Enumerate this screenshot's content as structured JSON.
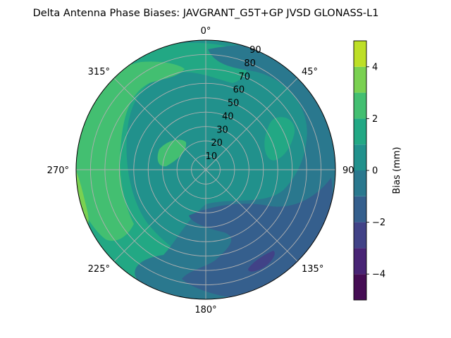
{
  "chart_data": {
    "type": "polar-contour",
    "title": "Delta Antenna Phase Biases: JAVGRANT_G5T+GP JVSD GLONASS-L1",
    "theta_direction": "clockwise",
    "theta_zero": "top",
    "theta_ticks": [
      "0°",
      "45°",
      "90°",
      "135°",
      "180°",
      "225°",
      "270°",
      "315°"
    ],
    "radial_ticks": [
      "10",
      "20",
      "30",
      "40",
      "50",
      "60",
      "70",
      "80",
      "90"
    ],
    "radial_range": [
      0,
      90
    ],
    "grid": true,
    "colorbar": {
      "label": "Bias (mm)",
      "range": [
        -5,
        5
      ],
      "ticks": [
        "−4",
        "−2",
        "0",
        "2",
        "4"
      ],
      "levels": [
        -5,
        -4,
        -3,
        -2,
        -1,
        0,
        1,
        2,
        3,
        4,
        5
      ],
      "colors": [
        "#450d54",
        "#482475",
        "#414287",
        "#355f8d",
        "#2a788e",
        "#21918c",
        "#22a884",
        "#43bf71",
        "#7ad151",
        "#bddf26"
      ]
    },
    "regions": [
      {
        "label": "Bias band 0 to 1 mm",
        "level": 0
      },
      {
        "label": "Bias band 1 to 2 mm",
        "level": 1
      },
      {
        "label": "Bias band 2 to 3 mm",
        "level": 2
      },
      {
        "label": "Bias band 3 to 4 mm",
        "level": 3
      },
      {
        "label": "Bias band -1 to 0 mm",
        "level": -1
      },
      {
        "label": "Bias band -2 to -1 mm",
        "level": -2
      },
      {
        "label": "Bias band -3 to -2 mm",
        "level": -3
      }
    ]
  }
}
